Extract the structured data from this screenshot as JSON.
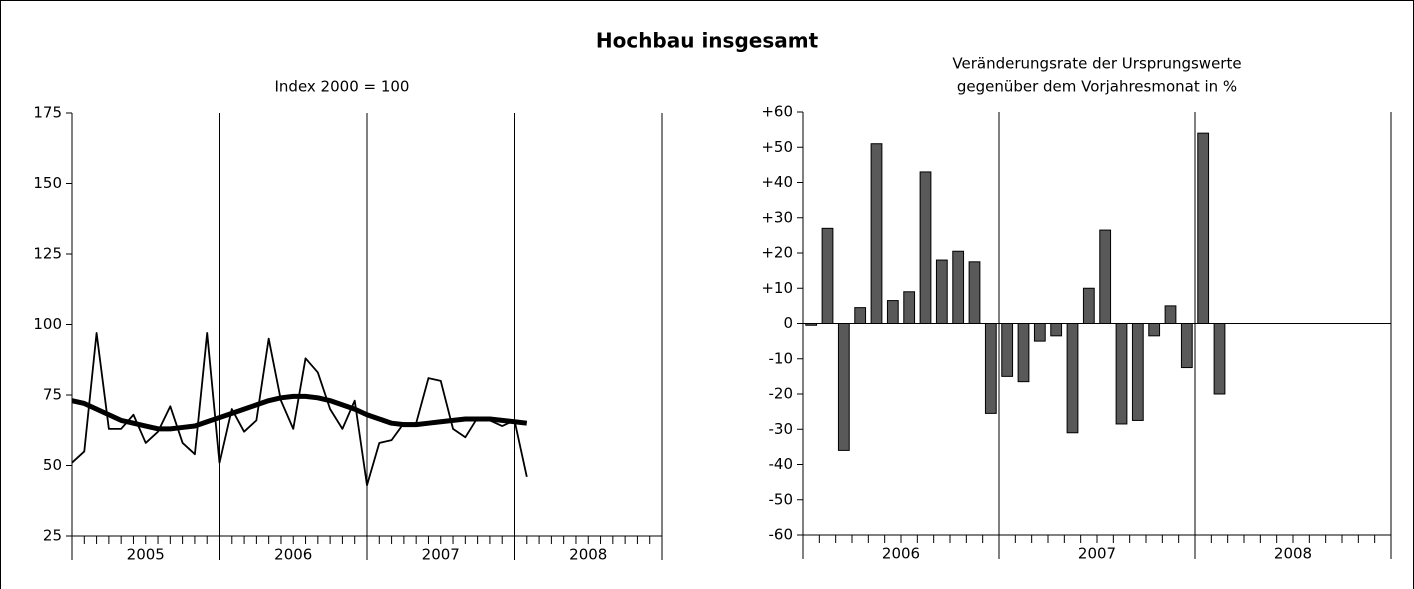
{
  "title": "Hochbau insgesamt",
  "chart_data": [
    {
      "type": "line",
      "title": [
        "Index 2000 = 100"
      ],
      "period_labels": [
        "2005",
        "2006",
        "2007",
        "2008"
      ],
      "categories": [
        null,
        null,
        null,
        null,
        null,
        null,
        null,
        null,
        null,
        null,
        null,
        null,
        null,
        null,
        null,
        null,
        null,
        null,
        null,
        null,
        null,
        null,
        null,
        null,
        null,
        null,
        null,
        null,
        null,
        null,
        null,
        null,
        null,
        null,
        null,
        null,
        null,
        null
      ],
      "series": [
        {
          "color": "#000000",
          "values": [
            51,
            55,
            97,
            63,
            63,
            68,
            58,
            62,
            71,
            58,
            54,
            97,
            51,
            70,
            62,
            66,
            95,
            73,
            63,
            88,
            83,
            70,
            63,
            73,
            43,
            58,
            59,
            65,
            65,
            81,
            80,
            63,
            60,
            67,
            66,
            64,
            66,
            46
          ]
        },
        {
          "color": "#000000",
          "values": [
            73,
            72,
            70,
            68,
            66,
            65,
            64,
            63,
            63,
            63.5,
            64,
            65.5,
            67,
            68.5,
            70,
            71.5,
            73,
            74,
            74.5,
            74.5,
            74,
            73,
            71.5,
            70,
            68,
            66.5,
            65,
            64.5,
            64.5,
            65,
            65.5,
            66,
            66.5,
            66.5,
            66.5,
            66,
            65.5,
            65
          ]
        }
      ],
      "ylim": [
        25,
        175
      ],
      "yticks": [
        25,
        50,
        75,
        100,
        125,
        150,
        175
      ]
    },
    {
      "type": "bar",
      "title": [
        "Veränderungsrate der Ursprungswerte",
        "gegenüber dem Vorjahresmonat in %"
      ],
      "period_labels": [
        "2006",
        "2007",
        "2008"
      ],
      "categories": [
        null,
        null,
        null,
        null,
        null,
        null,
        null,
        null,
        null,
        null,
        null,
        null,
        null,
        null,
        null,
        null,
        null,
        null,
        null,
        null,
        null,
        null,
        null,
        null,
        null,
        null
      ],
      "values": [
        -0.5,
        27,
        -36,
        4.5,
        51,
        6.5,
        9,
        43,
        18,
        20.5,
        17.5,
        -25.5,
        -15,
        -16.5,
        -5,
        -3.5,
        -31,
        10,
        26.5,
        -28.5,
        -27.5,
        -3.5,
        5,
        -12.5,
        54,
        -20
      ],
      "color": "#595959",
      "ylim": [
        -60,
        60
      ],
      "yticks": [
        {
          "value": 60,
          "label": "+60"
        },
        {
          "value": 50,
          "label": "+50"
        },
        {
          "value": 40,
          "label": "+40"
        },
        {
          "value": 30,
          "label": "+30"
        },
        {
          "value": 20,
          "label": "+20"
        },
        {
          "value": 10,
          "label": "+10"
        },
        0,
        -10,
        -20,
        -30,
        -40,
        -50,
        -60
      ]
    }
  ]
}
